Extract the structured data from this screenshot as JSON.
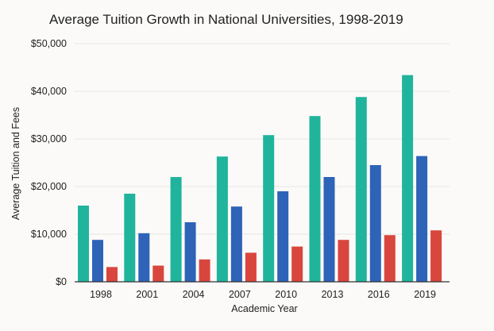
{
  "chart_data": {
    "type": "bar",
    "title": "Average Tuition Growth in National Universities, 1998-2019",
    "xlabel": "Academic Year",
    "ylabel": "Average Tuition and Fees",
    "categories": [
      "1998",
      "2001",
      "2004",
      "2007",
      "2010",
      "2013",
      "2016",
      "2019"
    ],
    "ylim": [
      0,
      50000
    ],
    "yticks": [
      "$0",
      "$10,000",
      "$20,000",
      "$30,000",
      "$40,000",
      "$50,000"
    ],
    "ytick_values": [
      0,
      10000,
      20000,
      30000,
      40000,
      50000
    ],
    "grid": true,
    "series": [
      {
        "color": "#20b49c",
        "values": [
          16000,
          18500,
          22000,
          26300,
          30800,
          34800,
          38800,
          43400
        ]
      },
      {
        "color": "#2e63b8",
        "values": [
          8800,
          10200,
          12500,
          15800,
          19000,
          22000,
          24500,
          26400
        ]
      },
      {
        "color": "#d9463e",
        "values": [
          3100,
          3400,
          4700,
          6100,
          7400,
          8800,
          9800,
          10800
        ]
      }
    ]
  }
}
